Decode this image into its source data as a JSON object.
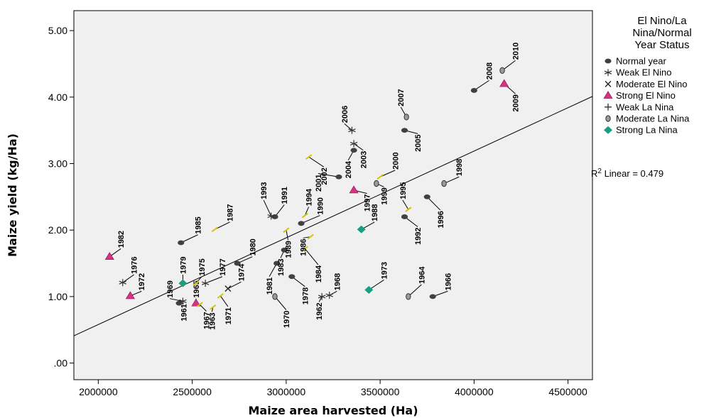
{
  "chart_data": {
    "type": "scatter",
    "xlabel": "Maize area harvested (Ha)",
    "ylabel": "Maize yield (kg/Ha)",
    "xlim": [
      1870000,
      4630000
    ],
    "ylim": [
      -0.25,
      5.3
    ],
    "x_ticks": [
      2000000,
      2500000,
      3000000,
      3500000,
      4000000,
      4500000
    ],
    "x_tick_labels": [
      "2000000",
      "2500000",
      "3000000",
      "3500000",
      "4000000",
      "4500000"
    ],
    "y_ticks": [
      0,
      1,
      2,
      3,
      4,
      5
    ],
    "y_tick_labels": [
      ".00",
      "1.00",
      "2.00",
      "3.00",
      "4.00",
      "5.00"
    ],
    "legend": {
      "title_lines": [
        "El Nino/La",
        "Nina/Normal",
        "Year Status"
      ],
      "position": "right",
      "items": [
        {
          "key": "normal",
          "label": "Normal year"
        },
        {
          "key": "weak_el",
          "label": "Weak El Nino"
        },
        {
          "key": "mod_el",
          "label": "Moderate El Nino"
        },
        {
          "key": "strong_el",
          "label": "Strong El Nino"
        },
        {
          "key": "weak_la",
          "label": "Weak La Nina"
        },
        {
          "key": "mod_la",
          "label": "Moderate La Nina"
        },
        {
          "key": "strong_la",
          "label": "Strong La Nina"
        }
      ]
    },
    "fit_line": {
      "label_prefix": "R",
      "label_sup": "2",
      "label_rest": " Linear = 0.479",
      "x": [
        1870000,
        4630000
      ],
      "y": [
        0.41,
        4.01
      ]
    },
    "colors": {
      "background": "#f0f0f0",
      "normal": "#404040",
      "strong_el": "#d63384",
      "strong_la": "#1a9e80",
      "yellow": "#d4c400"
    },
    "points": [
      {
        "label": "1961",
        "x": 2430000,
        "y": 0.9,
        "s": "normal",
        "lx": 2455000,
        "ly": 0.9,
        "ld": "down"
      },
      {
        "label": "1962",
        "x": 3190000,
        "y": 1.0,
        "s": "weak_el",
        "lx": 3175000,
        "ly": 0.92,
        "ld": "down"
      },
      {
        "label": "1963",
        "x": 2610000,
        "y": 0.84,
        "s": "weak_la",
        "lx": 2605000,
        "ly": 0.77,
        "ld": "down"
      },
      {
        "label": "1964",
        "x": 3650000,
        "y": 1.0,
        "s": "mod_la",
        "lx": 3720000,
        "ly": 1.18,
        "ld": "up"
      },
      {
        "label": "1965",
        "x": 2520000,
        "y": 0.9,
        "s": "strong_el",
        "lx": 2520000,
        "ly": 0.97,
        "ld": "up"
      },
      {
        "label": "1966",
        "x": 3780000,
        "y": 1.0,
        "s": "normal",
        "lx": 3860000,
        "ly": 1.08,
        "ld": "up"
      },
      {
        "label": "1967",
        "x": 2540000,
        "y": 0.88,
        "s": "weak_la",
        "lx": 2575000,
        "ly": 0.78,
        "ld": "down"
      },
      {
        "label": "1968",
        "x": 3230000,
        "y": 1.02,
        "s": "weak_el",
        "lx": 3270000,
        "ly": 1.08,
        "ld": "up"
      },
      {
        "label": "1969",
        "x": 2450000,
        "y": 0.93,
        "s": "weak_el",
        "lx": 2380000,
        "ly": 0.97,
        "ld": "up"
      },
      {
        "label": "1970",
        "x": 2940000,
        "y": 1.0,
        "s": "mod_la",
        "lx": 3000000,
        "ly": 0.8,
        "ld": "down"
      },
      {
        "label": "1971",
        "x": 2650000,
        "y": 1.01,
        "s": "weak_la",
        "lx": 2690000,
        "ly": 0.85,
        "ld": "down"
      },
      {
        "label": "1972",
        "x": 2170000,
        "y": 1.01,
        "s": "strong_el",
        "lx": 2230000,
        "ly": 1.08,
        "ld": "up"
      },
      {
        "label": "1973",
        "x": 3440000,
        "y": 1.1,
        "s": "strong_la",
        "lx": 3520000,
        "ly": 1.25,
        "ld": "up"
      },
      {
        "label": "1974",
        "x": 2690000,
        "y": 1.12,
        "s": "mod_el",
        "lx": 2760000,
        "ly": 1.22,
        "ld": "up"
      },
      {
        "label": "1975",
        "x": 2520000,
        "y": 1.2,
        "s": "weak_la",
        "lx": 2550000,
        "ly": 1.3,
        "ld": "up"
      },
      {
        "label": "1976",
        "x": 2130000,
        "y": 1.21,
        "s": "weak_el",
        "lx": 2190000,
        "ly": 1.33,
        "ld": "up"
      },
      {
        "label": "1977",
        "x": 2570000,
        "y": 1.2,
        "s": "weak_el",
        "lx": 2660000,
        "ly": 1.3,
        "ld": "up"
      },
      {
        "label": "1978",
        "x": 3030000,
        "y": 1.3,
        "s": "normal",
        "lx": 3100000,
        "ly": 1.15,
        "ld": "down"
      },
      {
        "label": "1979",
        "x": 2450000,
        "y": 1.2,
        "s": "strong_la",
        "lx": 2450000,
        "ly": 1.33,
        "ld": "up"
      },
      {
        "label": "1980",
        "x": 2740000,
        "y": 1.5,
        "s": "normal",
        "lx": 2820000,
        "ly": 1.6,
        "ld": "up"
      },
      {
        "label": "1981",
        "x": 2950000,
        "y": 1.5,
        "s": "normal",
        "lx": 2910000,
        "ly": 1.3,
        "ld": "down"
      },
      {
        "label": "1982",
        "x": 2060000,
        "y": 1.6,
        "s": "strong_el",
        "lx": 2120000,
        "ly": 1.72,
        "ld": "up"
      },
      {
        "label": "1983",
        "x": 2990000,
        "y": 1.7,
        "s": "normal",
        "lx": 2970000,
        "ly": 1.58,
        "ld": "down"
      },
      {
        "label": "1984",
        "x": 3100000,
        "y": 1.72,
        "s": "weak_la",
        "lx": 3170000,
        "ly": 1.48,
        "ld": "down"
      },
      {
        "label": "1985",
        "x": 2440000,
        "y": 1.81,
        "s": "normal",
        "lx": 2530000,
        "ly": 1.93,
        "ld": "up"
      },
      {
        "label": "1986",
        "x": 3130000,
        "y": 1.9,
        "s": "weak_la",
        "lx": 3090000,
        "ly": 1.88,
        "ld": "down"
      },
      {
        "label": "1987",
        "x": 2620000,
        "y": 2.01,
        "s": "weak_la",
        "lx": 2700000,
        "ly": 2.12,
        "ld": "up"
      },
      {
        "label": "1988",
        "x": 3400000,
        "y": 2.01,
        "s": "strong_la",
        "lx": 3470000,
        "ly": 2.12,
        "ld": "up"
      },
      {
        "label": "1989",
        "x": 3000000,
        "y": 2.0,
        "s": "weak_la",
        "lx": 3010000,
        "ly": 1.85,
        "ld": "down"
      },
      {
        "label": "1990",
        "x": 3080000,
        "y": 2.1,
        "s": "normal",
        "lx": 3180000,
        "ly": 2.22,
        "ld": "up"
      },
      {
        "label": "1991",
        "x": 2940000,
        "y": 2.2,
        "s": "normal",
        "lx": 2990000,
        "ly": 2.38,
        "ld": "up"
      },
      {
        "label": "1992",
        "x": 3630000,
        "y": 2.2,
        "s": "normal",
        "lx": 3700000,
        "ly": 2.05,
        "ld": "down"
      },
      {
        "label": "1993",
        "x": 2920000,
        "y": 2.21,
        "s": "weak_el",
        "lx": 2880000,
        "ly": 2.45,
        "ld": "up"
      },
      {
        "label": "1994",
        "x": 3100000,
        "y": 2.22,
        "s": "weak_la",
        "lx": 3120000,
        "ly": 2.35,
        "ld": "up"
      },
      {
        "label": "1995",
        "x": 3650000,
        "y": 2.31,
        "s": "weak_la",
        "lx": 3620000,
        "ly": 2.45,
        "ld": "up"
      },
      {
        "label": "1996",
        "x": 3750000,
        "y": 2.5,
        "s": "normal",
        "lx": 3820000,
        "ly": 2.3,
        "ld": "down"
      },
      {
        "label": "1997",
        "x": 3360000,
        "y": 2.6,
        "s": "strong_el",
        "lx": 3430000,
        "ly": 2.55,
        "ld": "down"
      },
      {
        "label": "1998",
        "x": 3840000,
        "y": 2.7,
        "s": "mod_la",
        "lx": 3920000,
        "ly": 2.8,
        "ld": "up"
      },
      {
        "label": "1999",
        "x": 3480000,
        "y": 2.7,
        "s": "mod_la",
        "lx": 3520000,
        "ly": 2.65,
        "ld": "down"
      },
      {
        "label": "2000",
        "x": 3500000,
        "y": 2.8,
        "s": "weak_la",
        "lx": 3580000,
        "ly": 2.9,
        "ld": "up"
      },
      {
        "label": "2001",
        "x": 3280000,
        "y": 2.8,
        "s": "normal",
        "lx": 3170000,
        "ly": 2.85,
        "ld": "down"
      },
      {
        "label": "2002",
        "x": 3120000,
        "y": 3.1,
        "s": "weak_la",
        "lx": 3200000,
        "ly": 2.95,
        "ld": "down"
      },
      {
        "label": "2003",
        "x": 3360000,
        "y": 3.3,
        "s": "weak_el",
        "lx": 3410000,
        "ly": 3.2,
        "ld": "down"
      },
      {
        "label": "2004",
        "x": 3360000,
        "y": 3.2,
        "s": "normal",
        "lx": 3330000,
        "ly": 3.05,
        "ld": "down"
      },
      {
        "label": "2005",
        "x": 3630000,
        "y": 3.5,
        "s": "normal",
        "lx": 3700000,
        "ly": 3.45,
        "ld": "down"
      },
      {
        "label": "2006",
        "x": 3350000,
        "y": 3.5,
        "s": "weak_el",
        "lx": 3310000,
        "ly": 3.6,
        "ld": "up"
      },
      {
        "label": "2007",
        "x": 3640000,
        "y": 3.7,
        "s": "mod_la",
        "lx": 3610000,
        "ly": 3.85,
        "ld": "up"
      },
      {
        "label": "2008",
        "x": 4000000,
        "y": 4.1,
        "s": "normal",
        "lx": 4080000,
        "ly": 4.25,
        "ld": "up"
      },
      {
        "label": "2009",
        "x": 4160000,
        "y": 4.2,
        "s": "strong_el",
        "lx": 4220000,
        "ly": 4.05,
        "ld": "down"
      },
      {
        "label": "2010",
        "x": 4150000,
        "y": 4.4,
        "s": "mod_la",
        "lx": 4220000,
        "ly": 4.55,
        "ld": "up"
      }
    ]
  }
}
